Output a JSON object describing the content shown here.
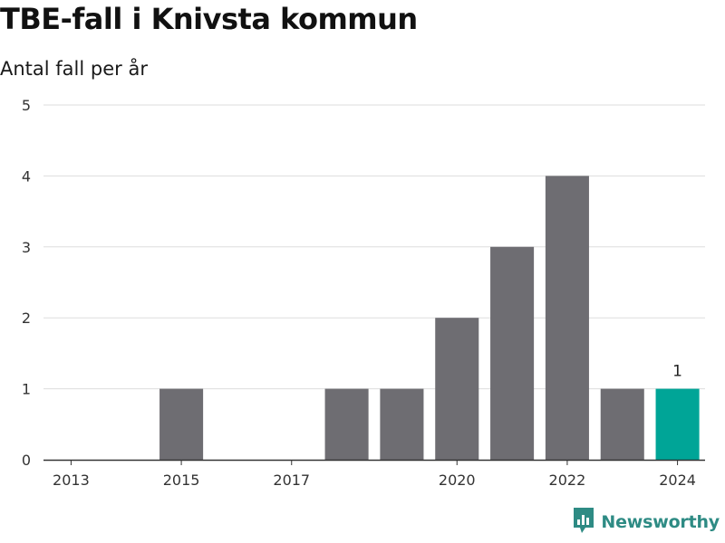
{
  "chart_data": {
    "type": "bar",
    "title": "TBE-fall i Knivsta kommun",
    "subtitle": "Antal fall per år",
    "xlabel": "",
    "ylabel": "",
    "ylim": [
      0,
      5
    ],
    "yticks": [
      0,
      1,
      2,
      3,
      4,
      5
    ],
    "categories": [
      2013,
      2014,
      2015,
      2016,
      2017,
      2018,
      2019,
      2020,
      2021,
      2022,
      2023,
      2024
    ],
    "xtick_labels": [
      "2013",
      "2015",
      "2017",
      "2020",
      "2022",
      "2024"
    ],
    "values": [
      0,
      0,
      1,
      0,
      0,
      1,
      1,
      2,
      3,
      4,
      1,
      1
    ],
    "highlight": {
      "category": 2024,
      "data_label": "1"
    },
    "grid": true,
    "colors": {
      "bar": "#6e6d72",
      "highlight": "#00a597",
      "grid": "#dddddd",
      "axis": "#333333"
    }
  },
  "branding": {
    "name": "Newsworthy",
    "icon": "newsworthy-logo-icon",
    "color": "#2e8b84"
  }
}
